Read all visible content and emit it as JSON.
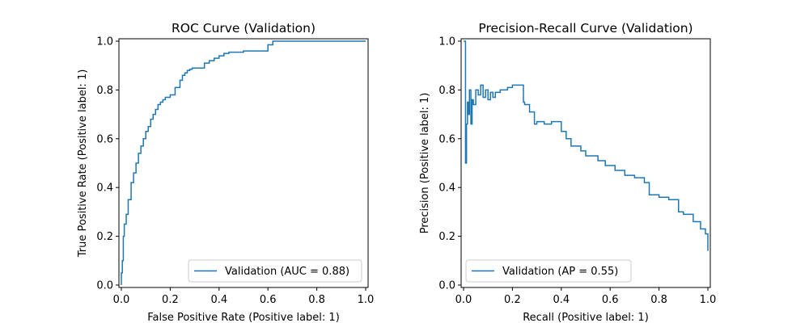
{
  "colors": {
    "series": "#1f77b4",
    "axes": "#000000",
    "legend_frame": "#cccccc",
    "background": "#ffffff"
  },
  "chart_data": [
    {
      "type": "line",
      "title": "ROC Curve (Validation)",
      "xlabel": "False Positive Rate (Positive label: 1)",
      "ylabel": "True Positive Rate (Positive label: 1)",
      "xlim": [
        0,
        1
      ],
      "ylim": [
        0,
        1
      ],
      "xticks": [
        "0.0",
        "0.2",
        "0.4",
        "0.6",
        "0.8",
        "1.0"
      ],
      "yticks": [
        "0.0",
        "0.2",
        "0.4",
        "0.6",
        "0.8",
        "1.0"
      ],
      "grid": false,
      "legend_position": "lower-right",
      "series": [
        {
          "name": "Validation (AUC = 0.88)",
          "step": true,
          "x": [
            0.0,
            0.0,
            0.004,
            0.004,
            0.008,
            0.008,
            0.012,
            0.012,
            0.02,
            0.02,
            0.028,
            0.028,
            0.04,
            0.04,
            0.05,
            0.05,
            0.06,
            0.06,
            0.07,
            0.07,
            0.08,
            0.08,
            0.09,
            0.09,
            0.1,
            0.1,
            0.11,
            0.11,
            0.12,
            0.12,
            0.13,
            0.13,
            0.14,
            0.14,
            0.15,
            0.15,
            0.16,
            0.16,
            0.17,
            0.17,
            0.18,
            0.18,
            0.2,
            0.2,
            0.22,
            0.22,
            0.24,
            0.24,
            0.25,
            0.25,
            0.26,
            0.26,
            0.27,
            0.27,
            0.28,
            0.28,
            0.29,
            0.29,
            0.34,
            0.34,
            0.36,
            0.36,
            0.38,
            0.38,
            0.4,
            0.4,
            0.42,
            0.42,
            0.44,
            0.44,
            0.5,
            0.5,
            0.6,
            0.6,
            0.62,
            0.62,
            1.0
          ],
          "y": [
            0.0,
            0.05,
            0.05,
            0.1,
            0.1,
            0.2,
            0.2,
            0.25,
            0.25,
            0.29,
            0.29,
            0.35,
            0.35,
            0.42,
            0.42,
            0.46,
            0.46,
            0.5,
            0.5,
            0.54,
            0.54,
            0.57,
            0.57,
            0.6,
            0.6,
            0.63,
            0.63,
            0.65,
            0.65,
            0.68,
            0.68,
            0.7,
            0.7,
            0.72,
            0.72,
            0.74,
            0.74,
            0.75,
            0.75,
            0.76,
            0.76,
            0.77,
            0.77,
            0.78,
            0.78,
            0.81,
            0.81,
            0.84,
            0.84,
            0.86,
            0.86,
            0.87,
            0.87,
            0.88,
            0.88,
            0.885,
            0.885,
            0.89,
            0.89,
            0.91,
            0.91,
            0.92,
            0.92,
            0.93,
            0.93,
            0.94,
            0.94,
            0.95,
            0.95,
            0.955,
            0.955,
            0.96,
            0.96,
            0.985,
            0.985,
            1.0,
            1.0
          ]
        }
      ]
    },
    {
      "type": "line",
      "title": "Precision-Recall Curve (Validation)",
      "xlabel": "Recall (Positive label: 1)",
      "ylabel": "Precision (Positive label: 1)",
      "xlim": [
        0,
        1
      ],
      "ylim": [
        0,
        1
      ],
      "xticks": [
        "0.0",
        "0.2",
        "0.4",
        "0.6",
        "0.8",
        "1.0"
      ],
      "yticks": [
        "0.0",
        "0.2",
        "0.4",
        "0.6",
        "0.8",
        "1.0"
      ],
      "grid": false,
      "legend_position": "lower-left",
      "series": [
        {
          "name": "Validation (AP = 0.55)",
          "step": true,
          "x": [
            0.0,
            0.008,
            0.008,
            0.012,
            0.012,
            0.016,
            0.016,
            0.02,
            0.02,
            0.024,
            0.024,
            0.03,
            0.03,
            0.035,
            0.035,
            0.04,
            0.04,
            0.05,
            0.05,
            0.06,
            0.06,
            0.07,
            0.07,
            0.08,
            0.08,
            0.09,
            0.09,
            0.1,
            0.1,
            0.11,
            0.11,
            0.12,
            0.12,
            0.13,
            0.13,
            0.15,
            0.15,
            0.18,
            0.18,
            0.2,
            0.2,
            0.245,
            0.245,
            0.25,
            0.25,
            0.27,
            0.27,
            0.29,
            0.29,
            0.3,
            0.3,
            0.33,
            0.33,
            0.36,
            0.36,
            0.4,
            0.4,
            0.42,
            0.42,
            0.44,
            0.44,
            0.48,
            0.48,
            0.5,
            0.5,
            0.55,
            0.55,
            0.58,
            0.58,
            0.62,
            0.62,
            0.66,
            0.66,
            0.7,
            0.7,
            0.74,
            0.74,
            0.76,
            0.76,
            0.8,
            0.8,
            0.84,
            0.84,
            0.88,
            0.88,
            0.9,
            0.9,
            0.94,
            0.94,
            0.97,
            0.97,
            0.99,
            0.99,
            1.0,
            1.0
          ],
          "y": [
            1.0,
            1.0,
            0.5,
            0.5,
            0.66,
            0.66,
            0.75,
            0.75,
            0.7,
            0.7,
            0.8,
            0.8,
            0.66,
            0.66,
            0.76,
            0.76,
            0.74,
            0.74,
            0.8,
            0.8,
            0.78,
            0.78,
            0.82,
            0.82,
            0.77,
            0.77,
            0.8,
            0.8,
            0.76,
            0.76,
            0.79,
            0.79,
            0.77,
            0.77,
            0.79,
            0.79,
            0.8,
            0.8,
            0.81,
            0.81,
            0.82,
            0.82,
            0.75,
            0.75,
            0.74,
            0.74,
            0.71,
            0.71,
            0.66,
            0.66,
            0.67,
            0.67,
            0.66,
            0.66,
            0.67,
            0.67,
            0.63,
            0.63,
            0.6,
            0.6,
            0.57,
            0.57,
            0.55,
            0.55,
            0.53,
            0.53,
            0.51,
            0.51,
            0.49,
            0.49,
            0.47,
            0.47,
            0.45,
            0.45,
            0.44,
            0.44,
            0.42,
            0.42,
            0.37,
            0.37,
            0.36,
            0.36,
            0.35,
            0.35,
            0.3,
            0.3,
            0.29,
            0.29,
            0.26,
            0.26,
            0.23,
            0.23,
            0.21,
            0.21,
            0.14
          ]
        }
      ]
    }
  ]
}
